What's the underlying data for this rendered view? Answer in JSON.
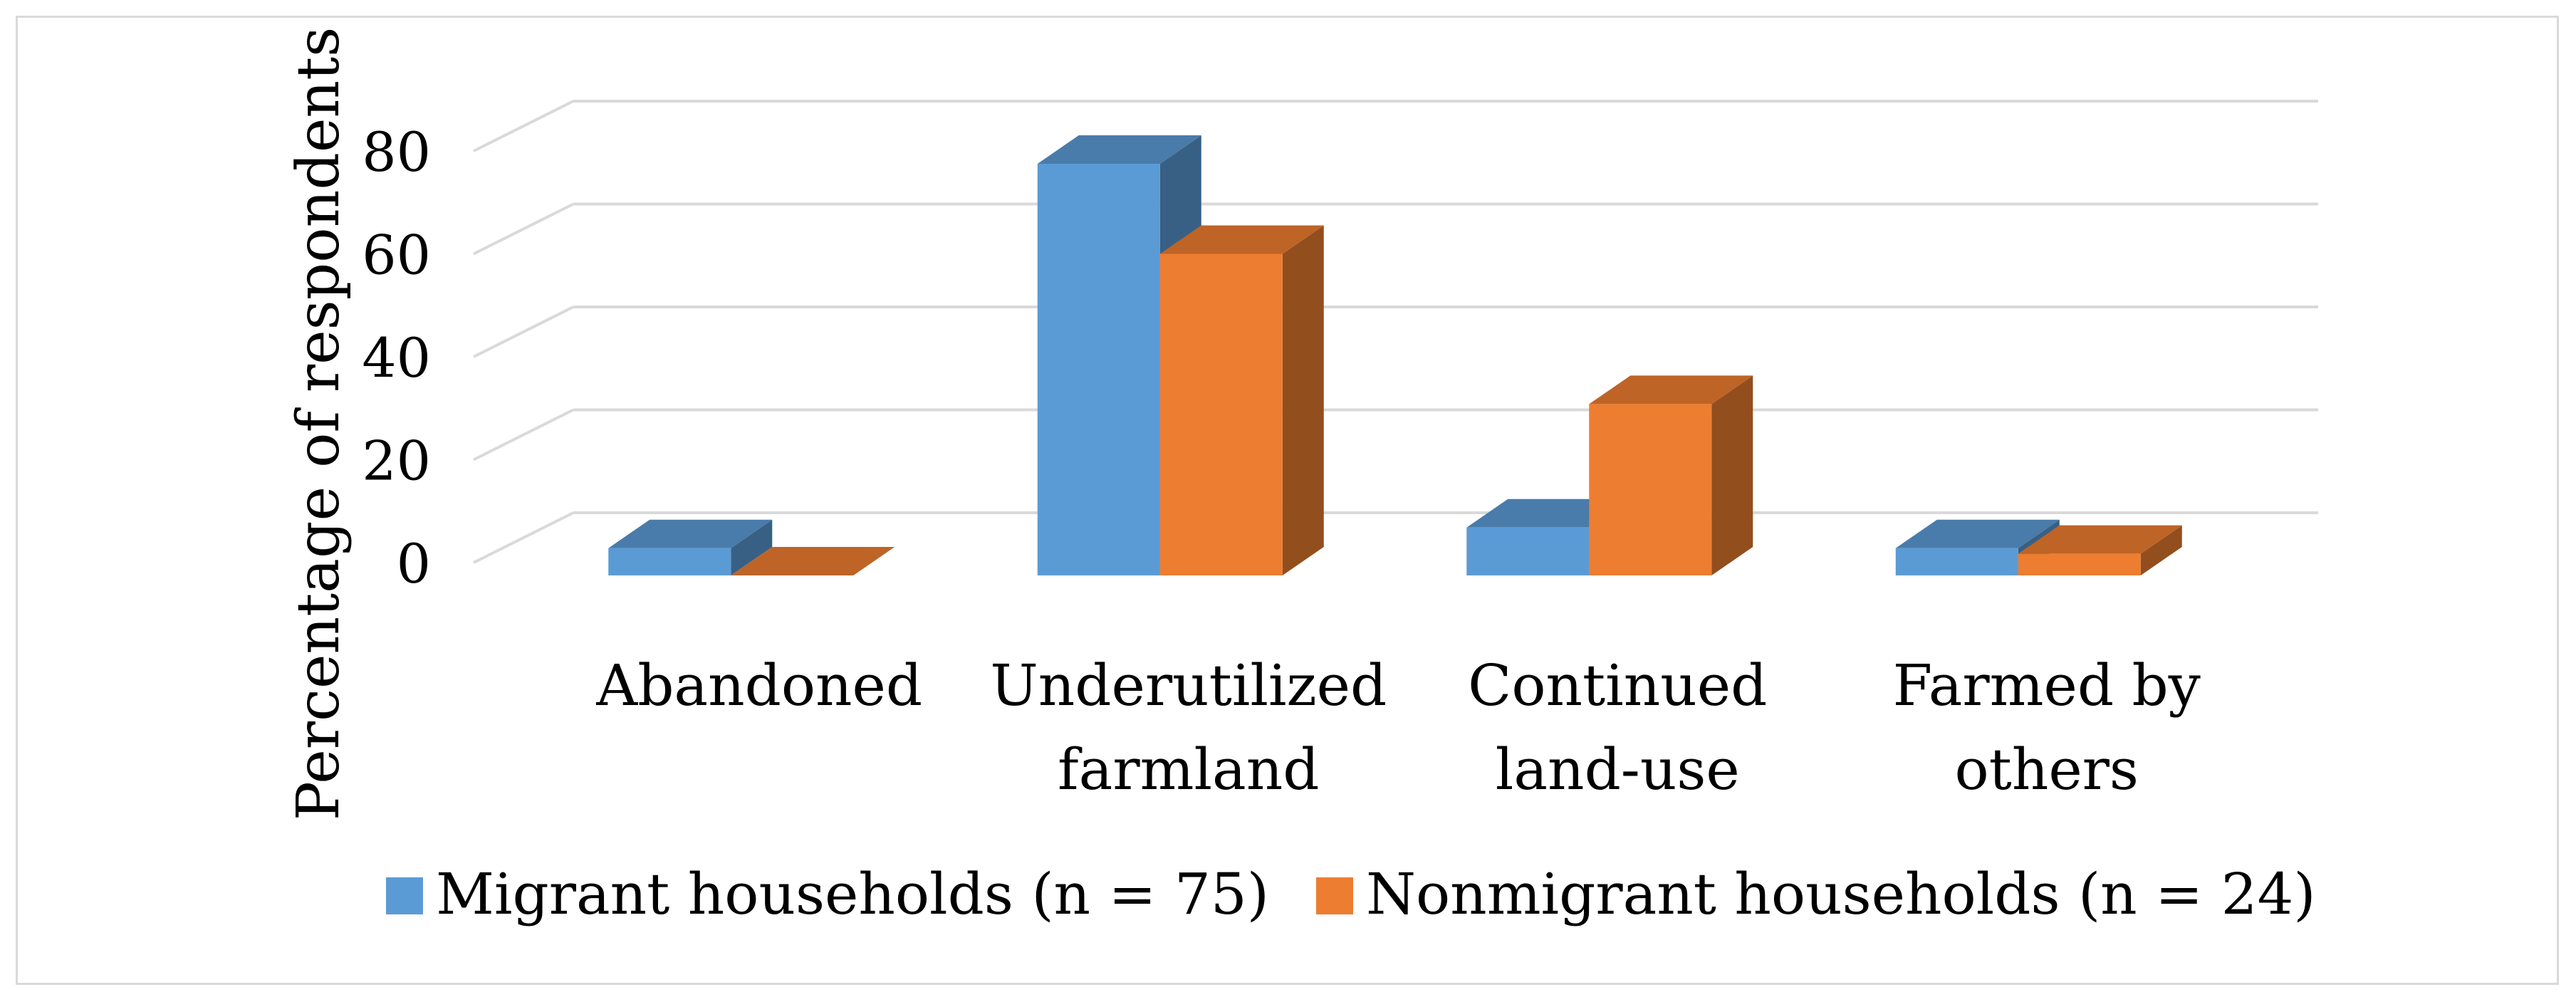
{
  "chart_data": {
    "type": "bar",
    "style": "3d-clustered",
    "title": "",
    "ylabel": "Percentage of respondents",
    "xlabel": "",
    "ylim": [
      0,
      80
    ],
    "yticks": [
      0,
      20,
      40,
      60,
      80
    ],
    "grid": true,
    "legend_position": "bottom",
    "categories": [
      [
        "Abandoned"
      ],
      [
        "Underutilized",
        "farmland"
      ],
      [
        "Continued",
        "land-use"
      ],
      [
        "Farmed by",
        "others"
      ]
    ],
    "series": [
      {
        "name": "Migrant households (n = 75)",
        "color": "#5b9bd5",
        "values": [
          5.3,
          80.0,
          9.3,
          5.3
        ]
      },
      {
        "name": "Nonmigrant households (n = 24)",
        "color": "#ed7d31",
        "values": [
          0,
          62.5,
          33.3,
          4.2
        ]
      }
    ]
  }
}
